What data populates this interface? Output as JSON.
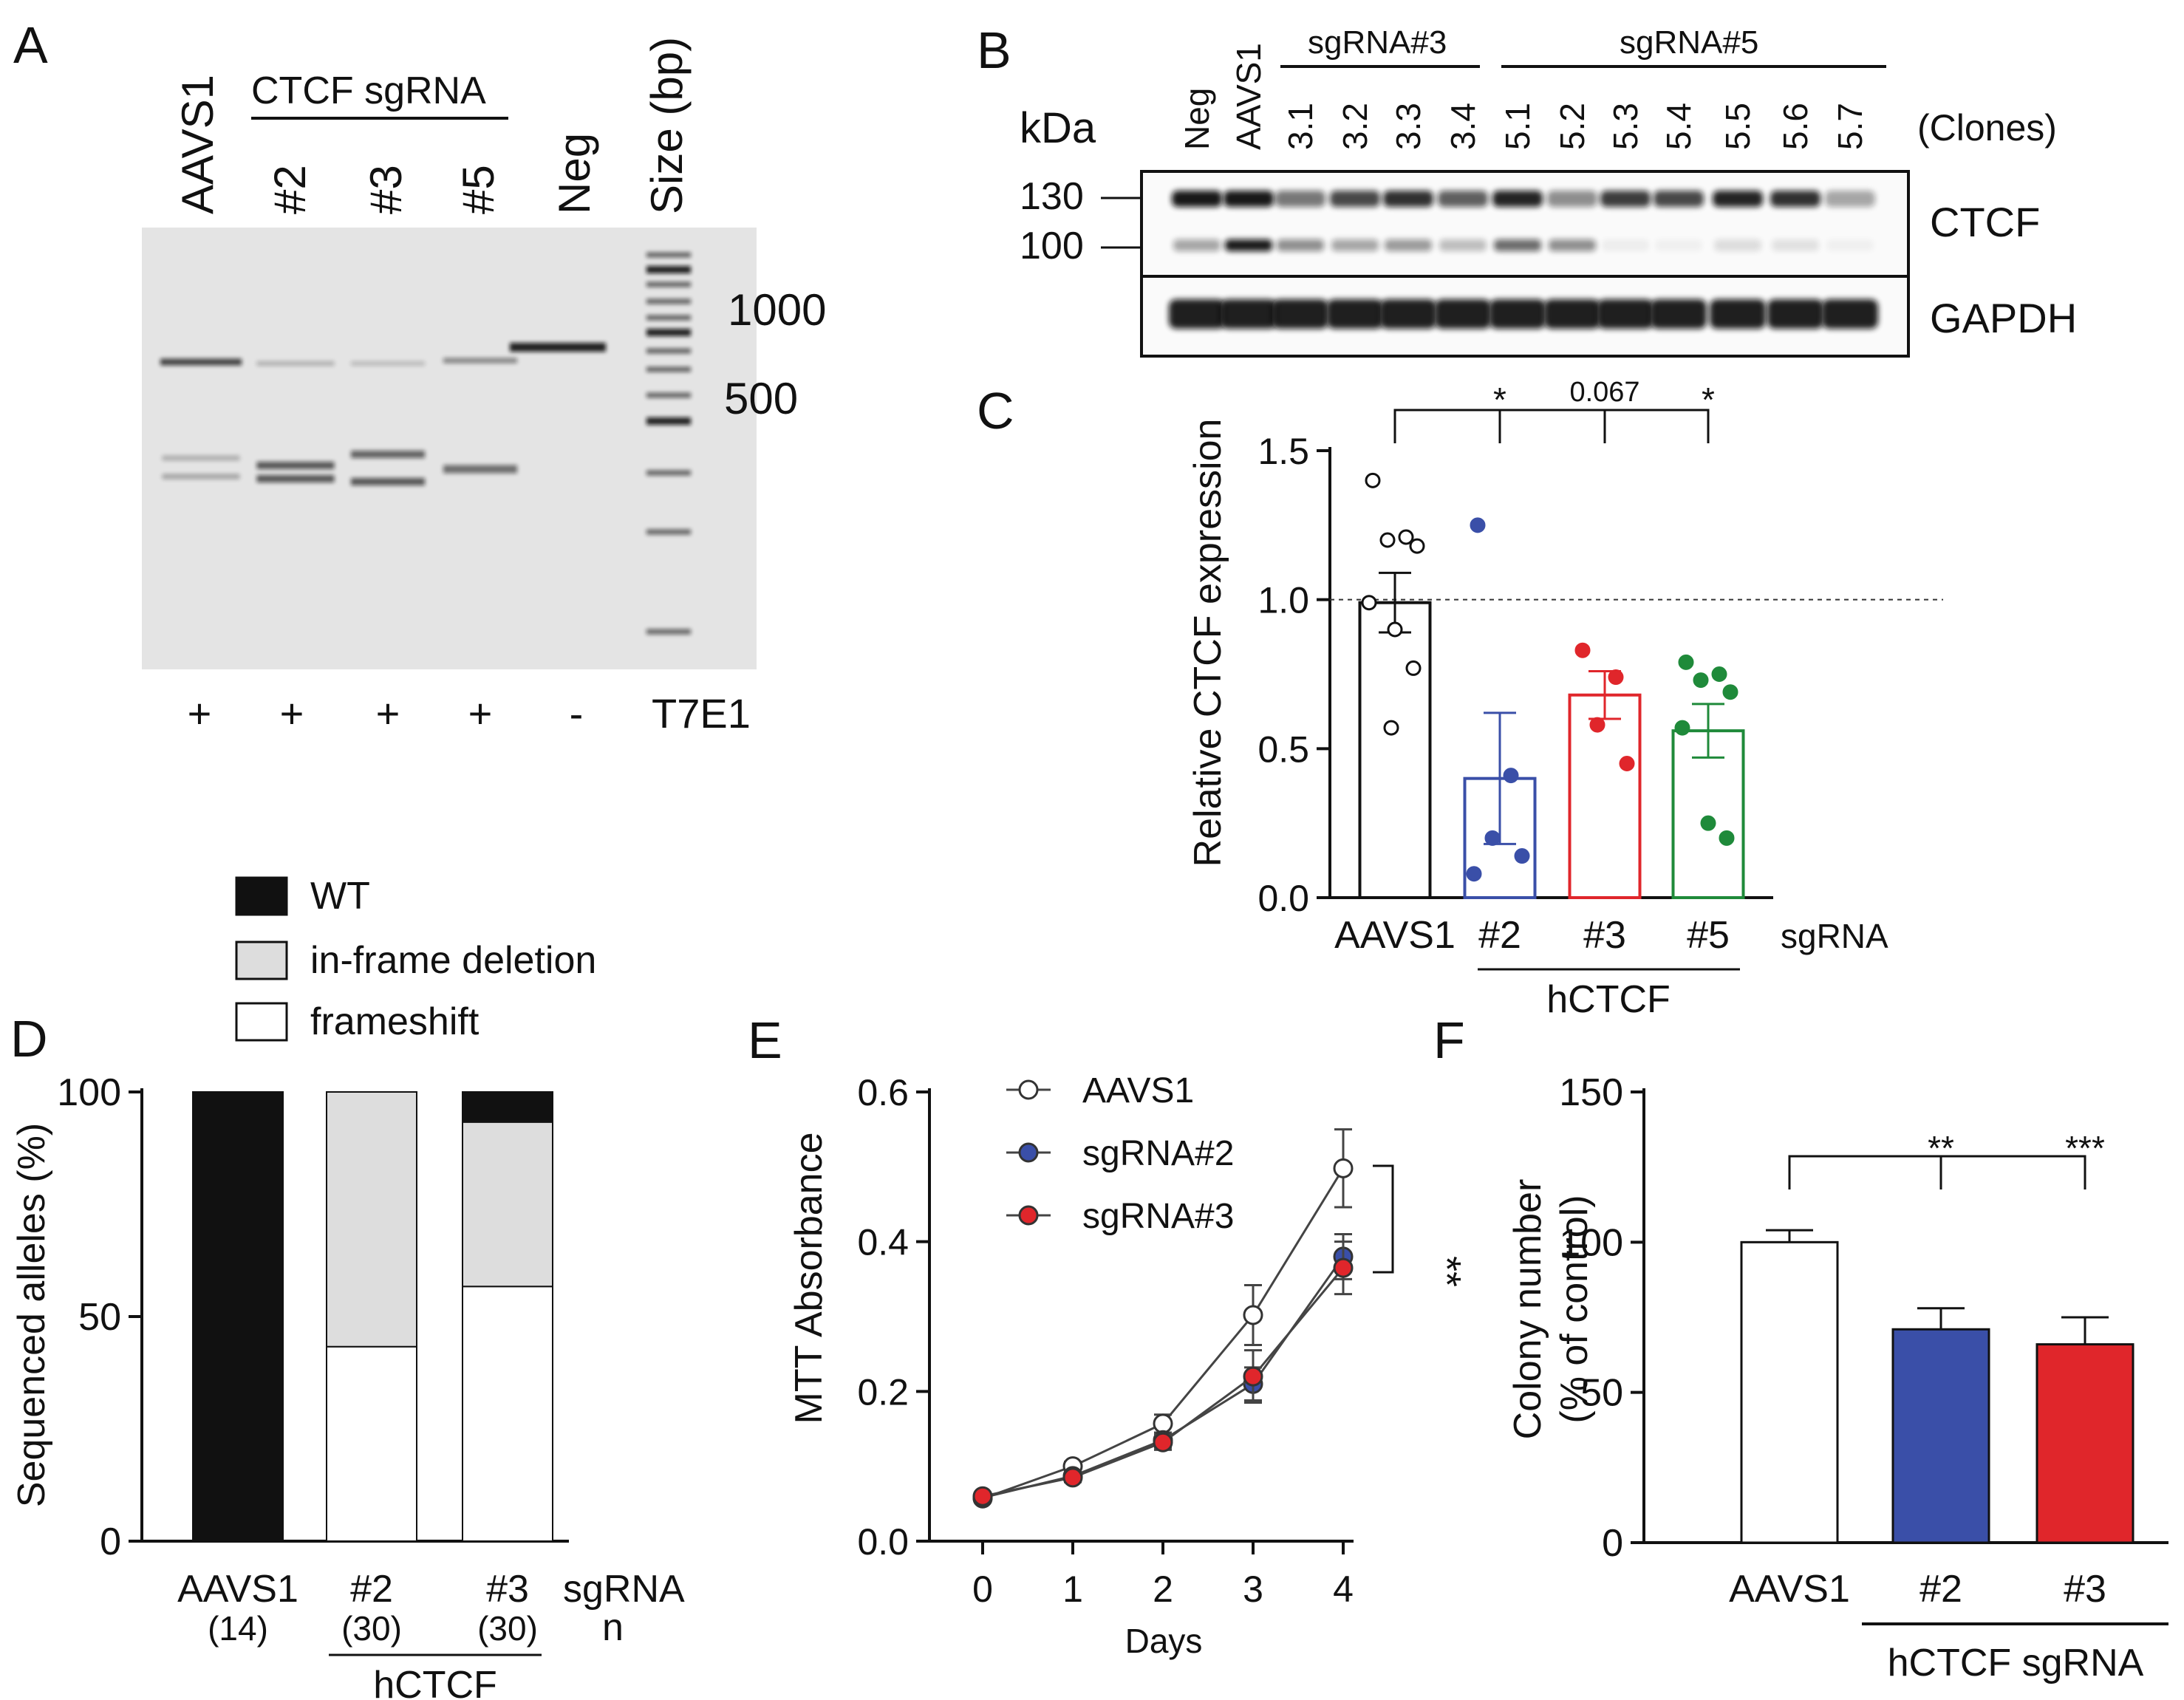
{
  "panel_letters": {
    "a": "A",
    "b": "B",
    "c": "C",
    "d": "D",
    "e": "E",
    "f": "F"
  },
  "panel_a": {
    "group_label": "CTCF sgRNA",
    "lanes": [
      "AAVS1",
      "#2",
      "#3",
      "#5",
      "Neg",
      "Size (bp)"
    ],
    "size_markers": [
      "1000",
      "500"
    ],
    "t7e1_signs": [
      "+",
      "+",
      "+",
      "+",
      "-"
    ],
    "t7e1_label": "T7E1"
  },
  "panel_b": {
    "kda_label": "kDa",
    "mw_markers": [
      "130",
      "100"
    ],
    "group_sg3": "sgRNA#3",
    "group_sg5": "sgRNA#5",
    "lanes": [
      "Neg",
      "AAVS1",
      "3.1",
      "3.2",
      "3.3",
      "3.4",
      "5.1",
      "5.2",
      "5.3",
      "5.4",
      "5.5",
      "5.6",
      "5.7"
    ],
    "clones_label": "(Clones)",
    "protein_labels": [
      "CTCF",
      "GAPDH"
    ]
  },
  "chart_data": [
    {
      "id": "C",
      "type": "bar",
      "ylabel": "Relative CTCF expression",
      "ylim": [
        0,
        1.5
      ],
      "yticks": [
        "0.0",
        "0.5",
        "1.0",
        "1.5"
      ],
      "reference_line": 1.0,
      "categories": [
        "AAVS1",
        "#2",
        "#3",
        "#5"
      ],
      "means": [
        0.99,
        0.4,
        0.68,
        0.56
      ],
      "sem": [
        0.1,
        0.22,
        0.08,
        0.09
      ],
      "colors": [
        "#111111",
        "#3a4fa8",
        "#e0262b",
        "#1f8a3a"
      ],
      "points": [
        [
          1.4,
          1.21,
          1.2,
          1.18,
          0.99,
          0.9,
          0.77,
          0.57
        ],
        [
          1.25,
          0.41,
          0.2,
          0.14,
          0.08
        ],
        [
          0.83,
          0.74,
          0.58,
          0.45
        ],
        [
          0.79,
          0.75,
          0.73,
          0.69,
          0.57,
          0.25,
          0.2
        ]
      ],
      "hollow": [
        true,
        false,
        false,
        false
      ],
      "significance": [
        "*",
        "0.067",
        "*"
      ],
      "xlabel_right": "sgRNA",
      "group_label": "hCTCF"
    },
    {
      "id": "D",
      "type": "bar",
      "stacked": true,
      "ylabel": "Sequenced alleles (%)",
      "ylim": [
        0,
        100
      ],
      "yticks": [
        "0",
        "50",
        "100"
      ],
      "categories": [
        "AAVS1",
        "#2",
        "#3"
      ],
      "n_labels": [
        "(14)",
        "(30)",
        "(30)"
      ],
      "series": [
        {
          "name": "frameshift",
          "color": "#ffffff",
          "values": [
            0,
            43.3,
            56.7
          ]
        },
        {
          "name": "in-frame deletion",
          "color": "#dddddd",
          "values": [
            0,
            56.7,
            36.6
          ]
        },
        {
          "name": "WT",
          "color": "#111111",
          "values": [
            100,
            0,
            6.7
          ]
        }
      ],
      "legend": [
        "WT",
        "in-frame deletion",
        "frameshift"
      ],
      "xlabel_right": "sgRNA",
      "n_label": "n",
      "group_label": "hCTCF"
    },
    {
      "id": "E",
      "type": "line",
      "ylabel": "MTT Absorbance",
      "xlabel": "Days",
      "x": [
        0,
        1,
        2,
        3,
        4
      ],
      "ylim": [
        0,
        0.6
      ],
      "yticks": [
        "0.0",
        "0.2",
        "0.4",
        "0.6"
      ],
      "xticks": [
        "0",
        "1",
        "2",
        "3",
        "4"
      ],
      "series": [
        {
          "name": "AAVS1",
          "color": "#ffffff",
          "values": [
            0.057,
            0.1,
            0.157,
            0.302,
            0.498
          ],
          "err": [
            0.005,
            0.006,
            0.012,
            0.04,
            0.052
          ]
        },
        {
          "name": "sgRNA#2",
          "color": "#3a4fa8",
          "values": [
            0.058,
            0.087,
            0.135,
            0.21,
            0.38
          ],
          "err": [
            0.005,
            0.006,
            0.01,
            0.022,
            0.03
          ]
        },
        {
          "name": "sgRNA#3",
          "color": "#e0262b",
          "values": [
            0.06,
            0.085,
            0.132,
            0.22,
            0.365
          ],
          "err": [
            0.005,
            0.006,
            0.01,
            0.035,
            0.035
          ]
        }
      ],
      "significance": "**"
    },
    {
      "id": "F",
      "type": "bar",
      "ylabel_line1": "Colony number",
      "ylabel_line2": "(% of control)",
      "ylim": [
        0,
        150
      ],
      "yticks": [
        "0",
        "50",
        "100",
        "150"
      ],
      "categories": [
        "AAVS1",
        "#2",
        "#3"
      ],
      "values": [
        100,
        71,
        66
      ],
      "err": [
        4,
        7,
        9
      ],
      "colors": [
        "#ffffff",
        "#3a4fa8",
        "#e0262b"
      ],
      "significance": [
        "**",
        "***"
      ],
      "group_label": "hCTCF sgRNA"
    }
  ]
}
